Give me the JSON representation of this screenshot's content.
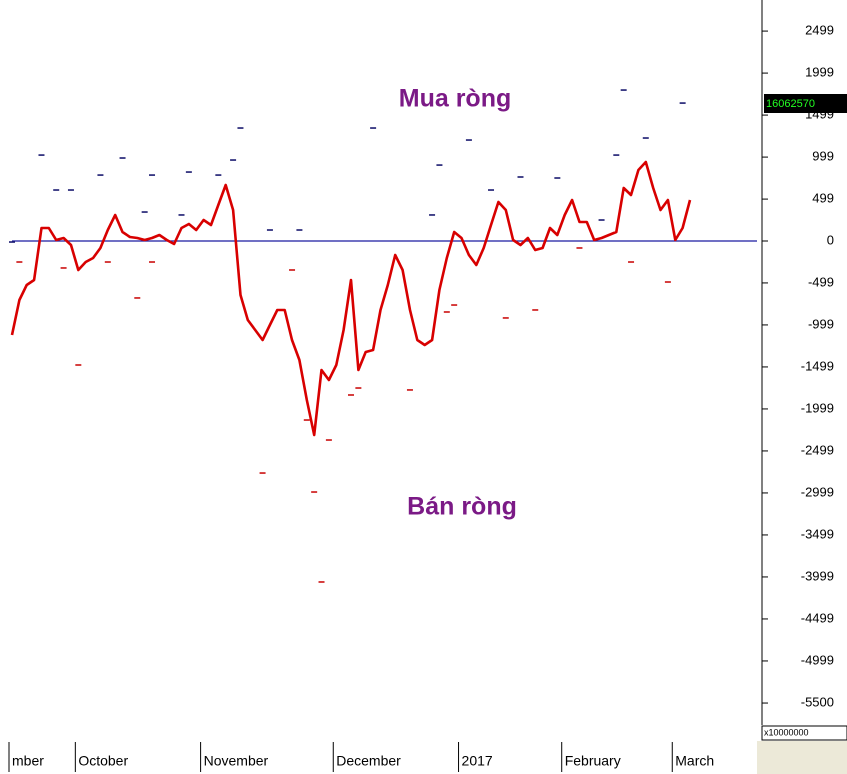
{
  "chart_data": {
    "type": "line",
    "annotations": [
      "Mua ròng",
      "Bán ròng"
    ],
    "last_value_label": "16062570",
    "scale_label": "x10000000",
    "categories": [
      "mber",
      null,
      null,
      null,
      null,
      null,
      null,
      null,
      null,
      "October",
      null,
      null,
      null,
      null,
      null,
      null,
      null,
      null,
      null,
      null,
      null,
      null,
      null,
      null,
      null,
      null,
      "November",
      null,
      null,
      null,
      null,
      null,
      null,
      null,
      null,
      null,
      null,
      null,
      null,
      null,
      null,
      null,
      null,
      null,
      "December",
      null,
      null,
      null,
      null,
      null,
      null,
      null,
      null,
      null,
      null,
      null,
      null,
      null,
      null,
      null,
      null,
      "2017",
      null,
      null,
      null,
      null,
      null,
      null,
      null,
      null,
      null,
      null,
      null,
      null,
      null,
      "February",
      null,
      null,
      null,
      null,
      null,
      null,
      null,
      null,
      null,
      null,
      null,
      null,
      null,
      null,
      "March",
      null,
      null
    ],
    "series": [
      {
        "color": "#d80000",
        "values": [
          -1119,
          -702,
          -524,
          -464,
          155,
          155,
          12,
          36,
          -48,
          -345,
          -250,
          -202,
          -83,
          131,
          310,
          107,
          48,
          36,
          12,
          36,
          71,
          12,
          -36,
          155,
          202,
          131,
          250,
          190,
          429,
          667,
          369,
          -643,
          -940,
          -1059,
          -1178,
          -1000,
          -821,
          -821,
          -1178,
          -1416,
          -1892,
          -2309,
          -1535,
          -1654,
          -1476,
          -1059,
          -464,
          -1535,
          -1321,
          -1297,
          -821,
          -524,
          -167,
          -345,
          -821,
          -1178,
          -1238,
          -1178,
          -583,
          -202,
          107,
          36,
          -167,
          -286,
          -83,
          190,
          464,
          369,
          12,
          -48,
          36,
          -107,
          -83,
          155,
          71,
          310,
          488,
          226,
          226,
          12,
          36,
          71,
          107,
          631,
          548,
          845,
          940,
          631,
          369,
          488,
          12,
          155,
          488
        ]
      }
    ],
    "dashes": [
      {
        "color": "#1a1a70",
        "x": [
          0,
          4,
          6,
          8,
          12,
          15,
          18,
          19,
          23,
          24,
          28,
          30,
          31,
          35,
          39,
          49,
          57,
          58,
          62,
          65,
          69,
          74,
          80,
          82,
          83,
          86,
          91
        ],
        "values": [
          -12,
          1023,
          607,
          607,
          785,
          988,
          345,
          785,
          310,
          821,
          785,
          964,
          1345,
          131,
          131,
          1345,
          310,
          904,
          1202,
          607,
          762,
          750,
          250,
          1023,
          1797,
          1226,
          1642
        ]
      },
      {
        "color": "#cc1010",
        "x": [
          1,
          7,
          9,
          13,
          17,
          19,
          34,
          38,
          40,
          41,
          42,
          43,
          46,
          47,
          54,
          59,
          60,
          67,
          71,
          77,
          84,
          89
        ],
        "values": [
          -250,
          -321,
          -1476,
          -250,
          -678,
          -250,
          -2762,
          -345,
          -2131,
          -2988,
          -4059,
          -2369,
          -1833,
          -1750,
          -1773,
          -845,
          -762,
          -916,
          -821,
          -83,
          -250,
          -488
        ]
      }
    ],
    "zero_line_color": "#1a1aa0",
    "ylim": [
      -5940,
      2869
    ],
    "yticks": [
      2499,
      1999,
      1499,
      999,
      499,
      0,
      -499,
      -999,
      -1499,
      -1999,
      -2499,
      -2999,
      -3499,
      -3999,
      -4499,
      -4999,
      -5500
    ]
  }
}
